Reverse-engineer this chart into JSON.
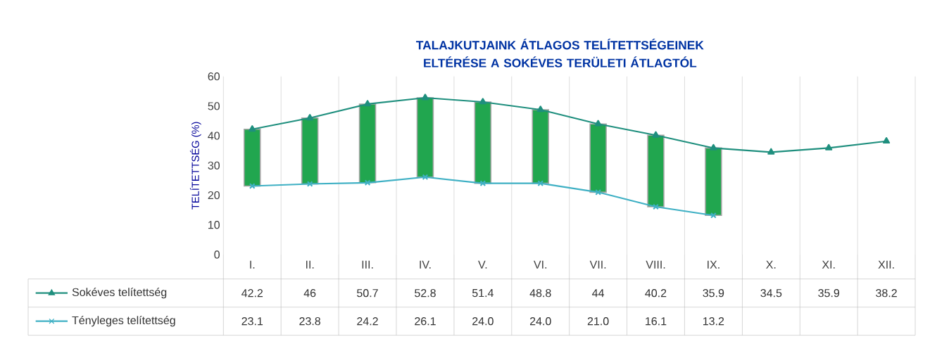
{
  "chart_data": {
    "type": "line",
    "title": "TALAJKUTJAINK ÁTLAGOS TELÍTETTSÉGEINEK ELTÉRÉSE A SOKÉVES TERÜLETI ÁTLAGTÓL",
    "ylabel": "TELÍTETTSÉG (%)",
    "categories": [
      "I.",
      "II.",
      "III.",
      "IV.",
      "V.",
      "VI.",
      "VII.",
      "VIII.",
      "IX.",
      "X.",
      "XI.",
      "XII."
    ],
    "ylim": [
      0,
      60
    ],
    "yticks": [
      0,
      10,
      20,
      30,
      40,
      50,
      60
    ],
    "grid": "x",
    "legend": "bottom",
    "series": [
      {
        "name": "Sokéves telítettség",
        "color": "#1f8f7e",
        "marker": "triangle",
        "values": [
          42.2,
          46,
          50.7,
          52.8,
          51.4,
          48.8,
          44,
          40.2,
          35.9,
          34.5,
          35.9,
          38.2
        ],
        "value_labels": [
          "42.2",
          "46",
          "50.7",
          "52.8",
          "51.4",
          "48.8",
          "44",
          "40.2",
          "35.9",
          "34.5",
          "35.9",
          "38.2"
        ]
      },
      {
        "name": "Tényleges telítettség",
        "color": "#3fb0c4",
        "marker": "cross",
        "values": [
          23.1,
          23.8,
          24.2,
          26.1,
          24.0,
          24.0,
          21.0,
          16.1,
          13.2,
          null,
          null,
          null
        ],
        "value_labels": [
          "23.1",
          "23.8",
          "24.2",
          "26.1",
          "24.0",
          "24.0",
          "21.0",
          "16.1",
          "13.2",
          null,
          null,
          null
        ]
      },
      {
        "type": "bar",
        "color": "#21a64f",
        "base": [
          23.1,
          23.8,
          24.2,
          26.1,
          24.0,
          24.0,
          21.0,
          16.1,
          13.2,
          null,
          null,
          null
        ],
        "values": [
          19.1,
          22.2,
          26.5,
          26.7,
          27.4,
          24.8,
          23.0,
          24.1,
          22.7,
          null,
          null,
          null
        ]
      }
    ]
  }
}
